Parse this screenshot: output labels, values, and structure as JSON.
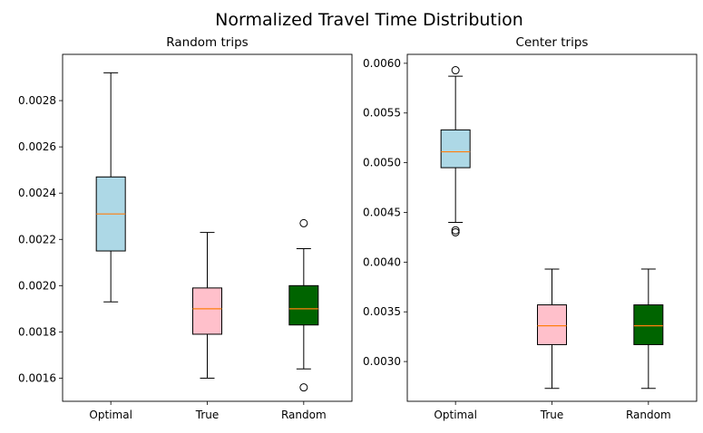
{
  "suptitle": "Normalized Travel Time Distribution",
  "chart_data": [
    {
      "type": "box",
      "title": "Random trips",
      "xlabel": "",
      "ylabel": "",
      "categories": [
        "Optimal",
        "True",
        "Random"
      ],
      "colors": [
        "#add8e6",
        "#ffc0cb",
        "#006400"
      ],
      "median_color": "#ff7f0e",
      "ylim": [
        0.0015,
        0.003
      ],
      "yticks": [
        0.0016,
        0.0018,
        0.002,
        0.0022,
        0.0024,
        0.0026,
        0.0028
      ],
      "ytick_labels": [
        "0.0016",
        "0.0018",
        "0.0020",
        "0.0022",
        "0.0024",
        "0.0026",
        "0.0028"
      ],
      "boxes": [
        {
          "name": "Optimal",
          "whislo": 0.00193,
          "q1": 0.00215,
          "med": 0.00231,
          "q3": 0.00247,
          "whishi": 0.00292,
          "fliers": []
        },
        {
          "name": "True",
          "whislo": 0.0016,
          "q1": 0.00179,
          "med": 0.0019,
          "q3": 0.00199,
          "whishi": 0.00223,
          "fliers": []
        },
        {
          "name": "Random",
          "whislo": 0.00164,
          "q1": 0.00183,
          "med": 0.0019,
          "q3": 0.002,
          "whishi": 0.00216,
          "fliers": [
            0.00227,
            0.00156
          ]
        }
      ]
    },
    {
      "type": "box",
      "title": "Center trips",
      "xlabel": "",
      "ylabel": "",
      "categories": [
        "Optimal",
        "True",
        "Random"
      ],
      "colors": [
        "#add8e6",
        "#ffc0cb",
        "#006400"
      ],
      "median_color": "#ff7f0e",
      "ylim": [
        0.0026,
        0.00609
      ],
      "yticks": [
        0.003,
        0.0035,
        0.004,
        0.0045,
        0.005,
        0.0055,
        0.006
      ],
      "ytick_labels": [
        "0.0030",
        "0.0035",
        "0.0040",
        "0.0045",
        "0.0050",
        "0.0055",
        "0.0060"
      ],
      "boxes": [
        {
          "name": "Optimal",
          "whislo": 0.0044,
          "q1": 0.00495,
          "med": 0.00511,
          "q3": 0.00533,
          "whishi": 0.00587,
          "fliers": [
            0.00593,
            0.00432,
            0.0043
          ]
        },
        {
          "name": "True",
          "whislo": 0.00273,
          "q1": 0.00317,
          "med": 0.00336,
          "q3": 0.00357,
          "whishi": 0.00393,
          "fliers": []
        },
        {
          "name": "Random",
          "whislo": 0.00273,
          "q1": 0.00317,
          "med": 0.00336,
          "q3": 0.00357,
          "whishi": 0.00393,
          "fliers": []
        }
      ]
    }
  ]
}
